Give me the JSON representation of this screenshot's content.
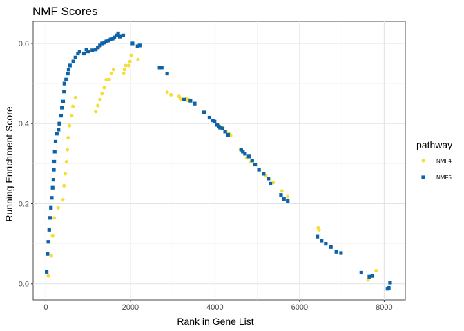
{
  "chart_data": {
    "type": "scatter",
    "title": "NMF Scores",
    "xlabel": "Rank in Gene List",
    "ylabel": "Running Enrichment Score",
    "xlim": [
      -300,
      8500
    ],
    "ylim": [
      -0.04,
      0.655
    ],
    "x_ticks": [
      0,
      2000,
      4000,
      6000,
      8000
    ],
    "x_tick_labels": [
      "0",
      "2000",
      "4000",
      "6000",
      "8000"
    ],
    "y_ticks": [
      0.0,
      0.2,
      0.4,
      0.6
    ],
    "y_tick_labels": [
      "0.0",
      "0.2",
      "0.4",
      "0.6"
    ],
    "grid": true,
    "legend": {
      "title": "pathway",
      "position": "right"
    },
    "series": [
      {
        "name": "NMF4",
        "marker": "circle",
        "color": "#F5DE3A",
        "points": [
          [
            60,
            0.02
          ],
          [
            130,
            0.07
          ],
          [
            160,
            0.12
          ],
          [
            200,
            0.165
          ],
          [
            290,
            0.19
          ],
          [
            400,
            0.21
          ],
          [
            430,
            0.245
          ],
          [
            460,
            0.275
          ],
          [
            490,
            0.305
          ],
          [
            510,
            0.335
          ],
          [
            530,
            0.365
          ],
          [
            560,
            0.395
          ],
          [
            610,
            0.42
          ],
          [
            640,
            0.443
          ],
          [
            700,
            0.465
          ],
          [
            1180,
            0.43
          ],
          [
            1230,
            0.445
          ],
          [
            1280,
            0.46
          ],
          [
            1330,
            0.475
          ],
          [
            1380,
            0.49
          ],
          [
            1430,
            0.51
          ],
          [
            1500,
            0.51
          ],
          [
            1550,
            0.525
          ],
          [
            1600,
            0.535
          ],
          [
            1840,
            0.525
          ],
          [
            1860,
            0.535
          ],
          [
            1890,
            0.545
          ],
          [
            1960,
            0.545
          ],
          [
            1990,
            0.555
          ],
          [
            2020,
            0.57
          ],
          [
            2180,
            0.56
          ],
          [
            2870,
            0.478
          ],
          [
            2960,
            0.472
          ],
          [
            3150,
            0.468
          ],
          [
            3180,
            0.462
          ],
          [
            3230,
            0.46
          ],
          [
            3320,
            0.462
          ],
          [
            3350,
            0.458
          ],
          [
            3380,
            0.46
          ],
          [
            4090,
            0.395
          ],
          [
            4190,
            0.39
          ],
          [
            4260,
            0.38
          ],
          [
            4330,
            0.375
          ],
          [
            4370,
            0.37
          ],
          [
            4600,
            0.335
          ],
          [
            4650,
            0.33
          ],
          [
            4700,
            0.325
          ],
          [
            4750,
            0.315
          ],
          [
            4850,
            0.305
          ],
          [
            5050,
            0.285
          ],
          [
            5200,
            0.27
          ],
          [
            5280,
            0.262
          ],
          [
            5380,
            0.253
          ],
          [
            5580,
            0.232
          ],
          [
            5720,
            0.218
          ],
          [
            6440,
            0.14
          ],
          [
            6460,
            0.135
          ],
          [
            7620,
            0.01
          ],
          [
            7730,
            0.02
          ],
          [
            7810,
            0.033
          ]
        ]
      },
      {
        "name": "NMF5",
        "marker": "square",
        "color": "#0E62A8",
        "points": [
          [
            20,
            0.03
          ],
          [
            40,
            0.075
          ],
          [
            60,
            0.105
          ],
          [
            80,
            0.135
          ],
          [
            100,
            0.165
          ],
          [
            120,
            0.19
          ],
          [
            140,
            0.215
          ],
          [
            160,
            0.24
          ],
          [
            180,
            0.26
          ],
          [
            190,
            0.285
          ],
          [
            200,
            0.305
          ],
          [
            210,
            0.33
          ],
          [
            230,
            0.355
          ],
          [
            260,
            0.375
          ],
          [
            300,
            0.385
          ],
          [
            320,
            0.4
          ],
          [
            360,
            0.42
          ],
          [
            380,
            0.44
          ],
          [
            410,
            0.455
          ],
          [
            430,
            0.48
          ],
          [
            440,
            0.5
          ],
          [
            480,
            0.51
          ],
          [
            520,
            0.525
          ],
          [
            540,
            0.535
          ],
          [
            570,
            0.545
          ],
          [
            650,
            0.555
          ],
          [
            700,
            0.565
          ],
          [
            760,
            0.575
          ],
          [
            800,
            0.58
          ],
          [
            900,
            0.575
          ],
          [
            960,
            0.585
          ],
          [
            1000,
            0.58
          ],
          [
            1100,
            0.583
          ],
          [
            1180,
            0.585
          ],
          [
            1230,
            0.59
          ],
          [
            1280,
            0.595
          ],
          [
            1330,
            0.6
          ],
          [
            1380,
            0.602
          ],
          [
            1430,
            0.605
          ],
          [
            1480,
            0.607
          ],
          [
            1530,
            0.61
          ],
          [
            1580,
            0.612
          ],
          [
            1620,
            0.615
          ],
          [
            1670,
            0.62
          ],
          [
            1710,
            0.625
          ],
          [
            1750,
            0.617
          ],
          [
            1830,
            0.62
          ],
          [
            2050,
            0.6
          ],
          [
            2170,
            0.593
          ],
          [
            2220,
            0.595
          ],
          [
            2690,
            0.54
          ],
          [
            2740,
            0.54
          ],
          [
            2870,
            0.525
          ],
          [
            3270,
            0.46
          ],
          [
            3420,
            0.457
          ],
          [
            3520,
            0.45
          ],
          [
            3740,
            0.428
          ],
          [
            3870,
            0.415
          ],
          [
            3950,
            0.408
          ],
          [
            3990,
            0.405
          ],
          [
            4050,
            0.397
          ],
          [
            4090,
            0.393
          ],
          [
            4120,
            0.39
          ],
          [
            4180,
            0.388
          ],
          [
            4240,
            0.38
          ],
          [
            4310,
            0.372
          ],
          [
            4620,
            0.335
          ],
          [
            4660,
            0.33
          ],
          [
            4710,
            0.325
          ],
          [
            4800,
            0.318
          ],
          [
            4880,
            0.308
          ],
          [
            4950,
            0.298
          ],
          [
            5040,
            0.285
          ],
          [
            5150,
            0.275
          ],
          [
            5260,
            0.263
          ],
          [
            5310,
            0.25
          ],
          [
            5560,
            0.222
          ],
          [
            5630,
            0.212
          ],
          [
            5720,
            0.207
          ],
          [
            6420,
            0.118
          ],
          [
            6520,
            0.108
          ],
          [
            6620,
            0.1
          ],
          [
            6740,
            0.092
          ],
          [
            6870,
            0.08
          ],
          [
            6980,
            0.077
          ],
          [
            7460,
            0.028
          ],
          [
            7650,
            0.018
          ],
          [
            7720,
            0.02
          ],
          [
            8080,
            -0.012
          ],
          [
            8110,
            -0.01
          ],
          [
            8140,
            0.003
          ]
        ]
      }
    ]
  }
}
